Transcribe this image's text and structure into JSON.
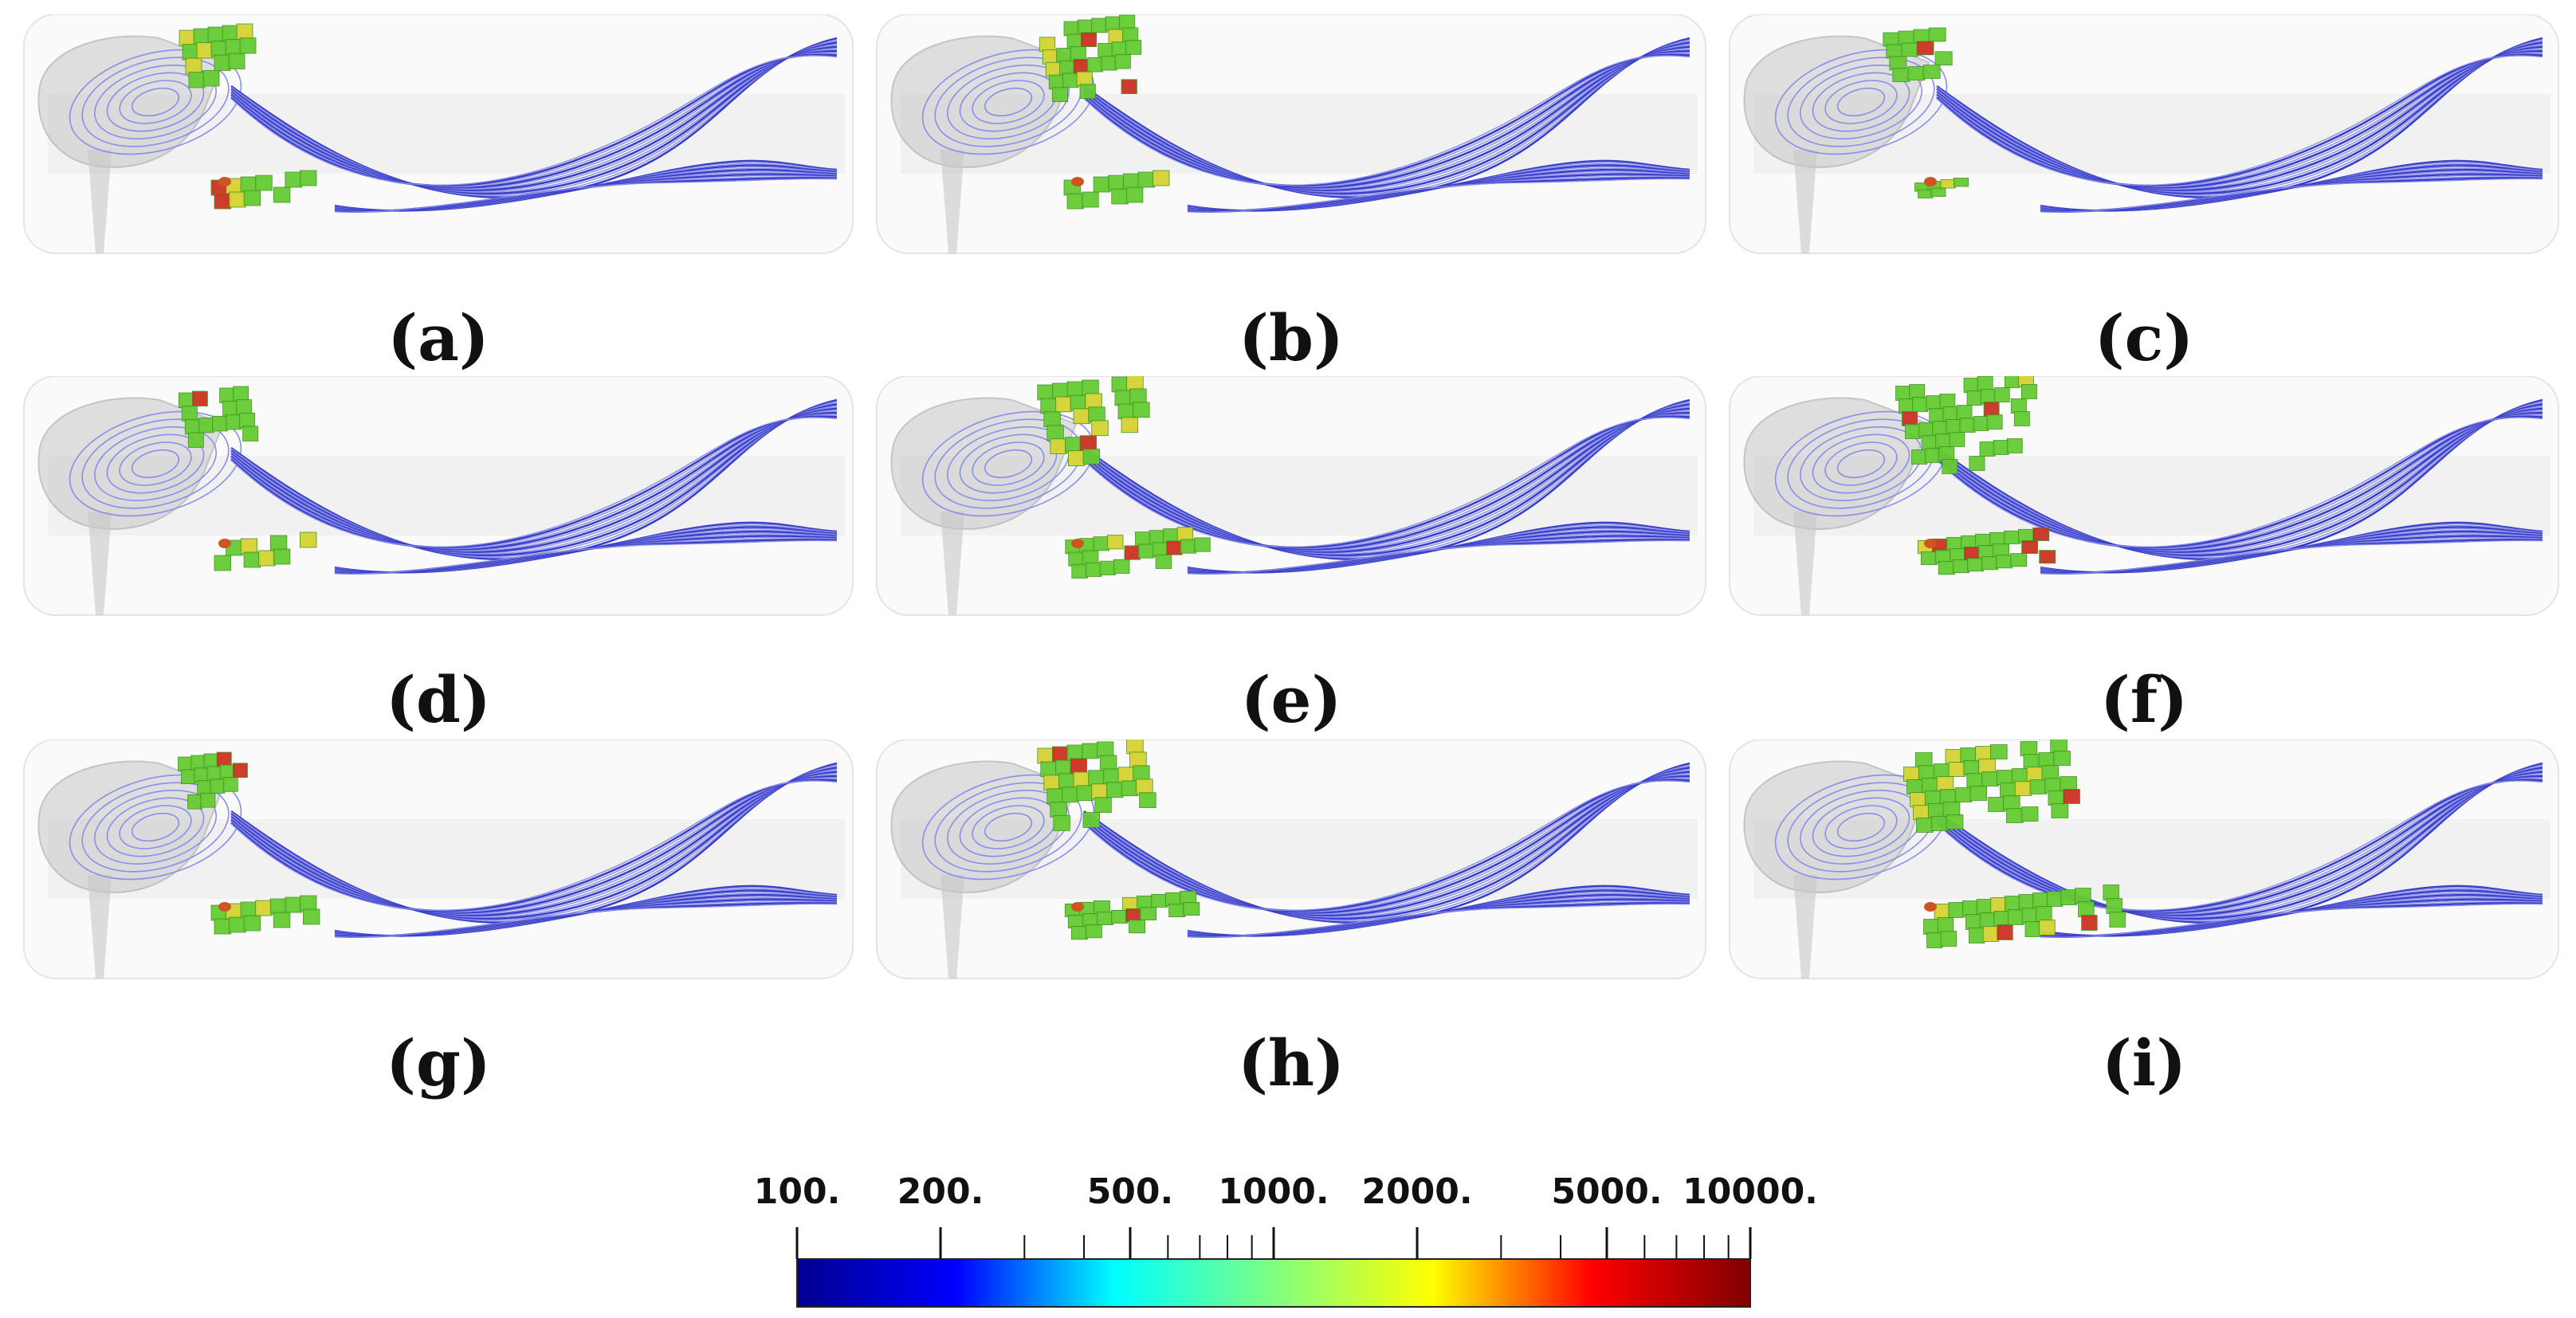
{
  "panels": [
    {
      "label": "(a)",
      "top_size": 1.0,
      "bottom_size": 1.0
    },
    {
      "label": "(b)",
      "top_size": 1.35,
      "bottom_size": 1.0
    },
    {
      "label": "(c)",
      "top_size": 0.85,
      "bottom_size": 0.5
    },
    {
      "label": "(d)",
      "top_size": 0.95,
      "bottom_size": 1.0
    },
    {
      "label": "(e)",
      "top_size": 1.45,
      "bottom_size": 1.35
    },
    {
      "label": "(f)",
      "top_size": 1.9,
      "bottom_size": 1.25
    },
    {
      "label": "(g)",
      "top_size": 0.9,
      "bottom_size": 1.0
    },
    {
      "label": "(h)",
      "top_size": 1.45,
      "bottom_size": 1.25
    },
    {
      "label": "(i)",
      "top_size": 2.3,
      "bottom_size": 1.9
    }
  ],
  "colorbar": {
    "ticks": [
      "100.",
      "200.",
      "500.",
      "1000.",
      "2000.",
      "5000.",
      "10000."
    ],
    "tick_values": [
      100,
      200,
      500,
      1000,
      2000,
      5000,
      10000
    ],
    "min": 100,
    "max": 10000,
    "scale": "log",
    "colors": [
      "#00008f",
      "#0000ff",
      "#00ffff",
      "#80ff80",
      "#ffff00",
      "#ff0000",
      "#800000"
    ]
  },
  "colors": {
    "streamline": "#3a3fc8",
    "streamline_light": "#8a8ee8",
    "block_green": "#66cc33",
    "block_yellow": "#d6d433",
    "block_red": "#cc3322",
    "body_gray": "#c8c8c8"
  }
}
